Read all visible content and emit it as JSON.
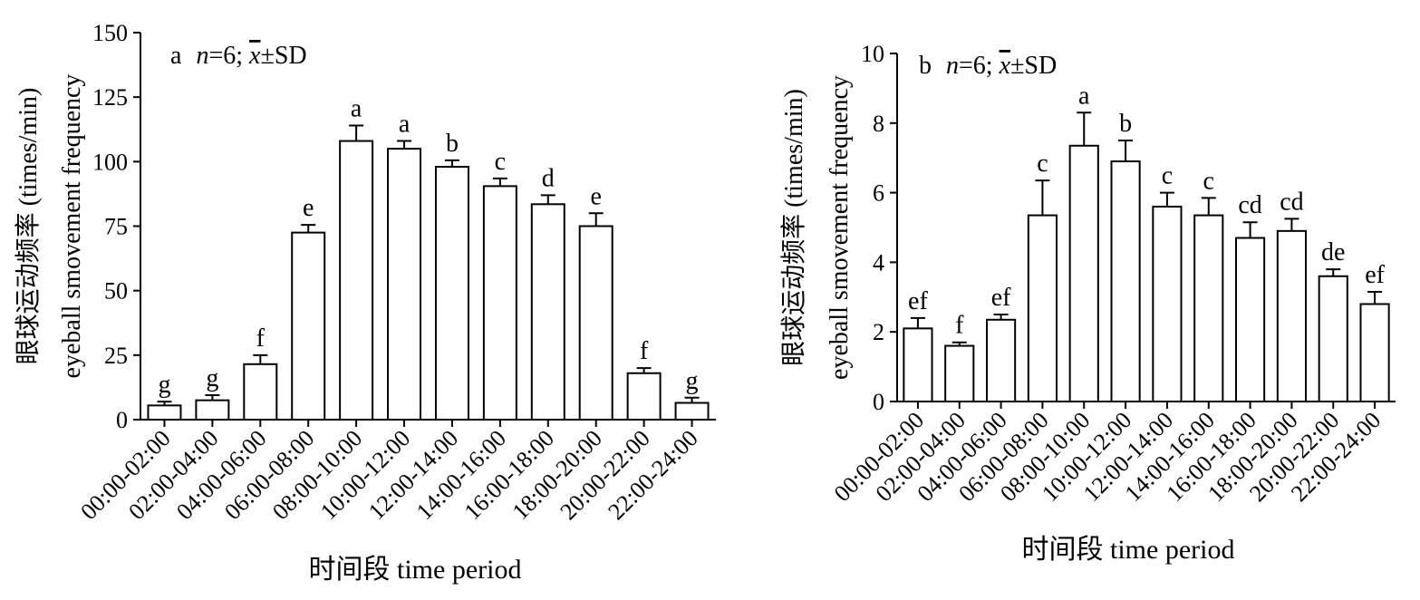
{
  "chart_data": [
    {
      "type": "bar",
      "panel_letter": "a",
      "annotation_n": "n",
      "annotation_rest": "=6; ",
      "annotation_x": "x",
      "annotation_sd": "±SD",
      "ylabel_line1": "眼球运动频率 (times/min)",
      "ylabel_line2": "eyeball smovement frequency",
      "xlabel": "时间段 time period",
      "ylim": [
        0,
        150
      ],
      "yticks": [
        0,
        25,
        50,
        75,
        100,
        125,
        150
      ],
      "categories": [
        "00:00-02:00",
        "02:00-04:00",
        "04:00-06:00",
        "06:00-08:00",
        "08:00-10:00",
        "10:00-12:00",
        "12:00-14:00",
        "14:00-16:00",
        "16:00-18:00",
        "18:00-20:00",
        "20:00-22:00",
        "22:00-24:00"
      ],
      "values": [
        5.5,
        7.5,
        21.5,
        72.5,
        108,
        105,
        98,
        90.5,
        83.5,
        75,
        18,
        6.5
      ],
      "errors": [
        1.5,
        2.0,
        3.5,
        3.0,
        6.0,
        3.0,
        2.5,
        3.0,
        3.5,
        5.0,
        2.0,
        2.0
      ],
      "significance": [
        "g",
        "g",
        "f",
        "e",
        "a",
        "a",
        "b",
        "c",
        "d",
        "e",
        "f",
        "g"
      ]
    },
    {
      "type": "bar",
      "panel_letter": "b",
      "annotation_n": "n",
      "annotation_rest": "=6; ",
      "annotation_x": "x",
      "annotation_sd": "±SD",
      "ylabel_line1": "眼球运动频率 (times/min)",
      "ylabel_line2": "eyeball smovement frequency",
      "xlabel": "时间段 time period",
      "ylim": [
        0,
        10
      ],
      "yticks": [
        0,
        2,
        4,
        6,
        8,
        10
      ],
      "categories": [
        "00:00-02:00",
        "02:00-04:00",
        "04:00-06:00",
        "06:00-08:00",
        "08:00-10:00",
        "10:00-12:00",
        "12:00-14:00",
        "14:00-16:00",
        "16:00-18:00",
        "18:00-20:00",
        "20:00-22:00",
        "22:00-24:00"
      ],
      "values": [
        2.1,
        1.6,
        2.35,
        5.35,
        7.35,
        6.9,
        5.6,
        5.35,
        4.7,
        4.9,
        3.6,
        2.8
      ],
      "errors": [
        0.3,
        0.1,
        0.15,
        1.0,
        0.95,
        0.6,
        0.4,
        0.5,
        0.45,
        0.35,
        0.2,
        0.35
      ],
      "significance": [
        "ef",
        "f",
        "ef",
        "c",
        "a",
        "b",
        "c",
        "c",
        "cd",
        "cd",
        "de",
        "ef"
      ]
    }
  ]
}
